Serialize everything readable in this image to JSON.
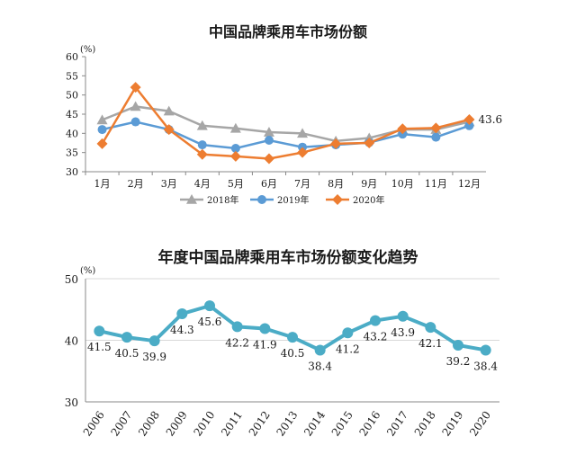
{
  "chart_data": [
    {
      "type": "line",
      "title": "中国品牌乘用车市场份额",
      "unit_label": "(%)",
      "categories": [
        "1月",
        "2月",
        "3月",
        "4月",
        "5月",
        "6月",
        "7月",
        "8月",
        "9月",
        "10月",
        "11月",
        "12月"
      ],
      "ylim": [
        30,
        60
      ],
      "yticks": [
        "60",
        "55",
        "50",
        "45",
        "40",
        "35",
        "30"
      ],
      "grid": false,
      "legend_position": "bottom",
      "series": [
        {
          "name": "2018年",
          "color": "#a6a6a6",
          "marker": "triangle",
          "values": [
            43.5,
            47.0,
            45.8,
            42.0,
            41.3,
            40.3,
            40.0,
            38.0,
            38.8,
            41.0,
            41.0,
            43.0
          ]
        },
        {
          "name": "2019年",
          "color": "#5b9bd5",
          "marker": "circle",
          "values": [
            41.0,
            43.0,
            41.0,
            37.0,
            36.1,
            38.2,
            36.4,
            37.0,
            37.6,
            39.8,
            39.0,
            42.0
          ]
        },
        {
          "name": "2020年",
          "color": "#ed7d31",
          "marker": "diamond",
          "values": [
            37.3,
            52.0,
            41.0,
            34.5,
            34.0,
            33.4,
            35.0,
            37.3,
            37.5,
            41.2,
            41.4,
            43.6
          ]
        }
      ],
      "end_label": "43.6"
    },
    {
      "type": "line",
      "title": "年度中国品牌乘用车市场份额变化趋势",
      "unit_label": "(%)",
      "categories": [
        "2006",
        "2007",
        "2008",
        "2009",
        "2010",
        "2011",
        "2012",
        "2013",
        "2014",
        "2015",
        "2016",
        "2017",
        "2018",
        "2019",
        "2020"
      ],
      "ylim": [
        30,
        50
      ],
      "yticks": [
        "50",
        "40",
        "30"
      ],
      "grid": true,
      "series": [
        {
          "color": "#4bacc6",
          "values": [
            41.5,
            40.5,
            39.9,
            44.3,
            45.6,
            42.2,
            41.9,
            40.5,
            38.4,
            41.2,
            43.2,
            43.9,
            42.1,
            39.2,
            38.4
          ]
        }
      ],
      "data_labels": [
        "41.5",
        "40.5",
        "39.9",
        "44.3",
        "45.6",
        "42.2",
        "41.9",
        "40.5",
        "38.4",
        "41.2",
        "43.2",
        "43.9",
        "42.1",
        "39.2",
        "38.4"
      ]
    }
  ]
}
